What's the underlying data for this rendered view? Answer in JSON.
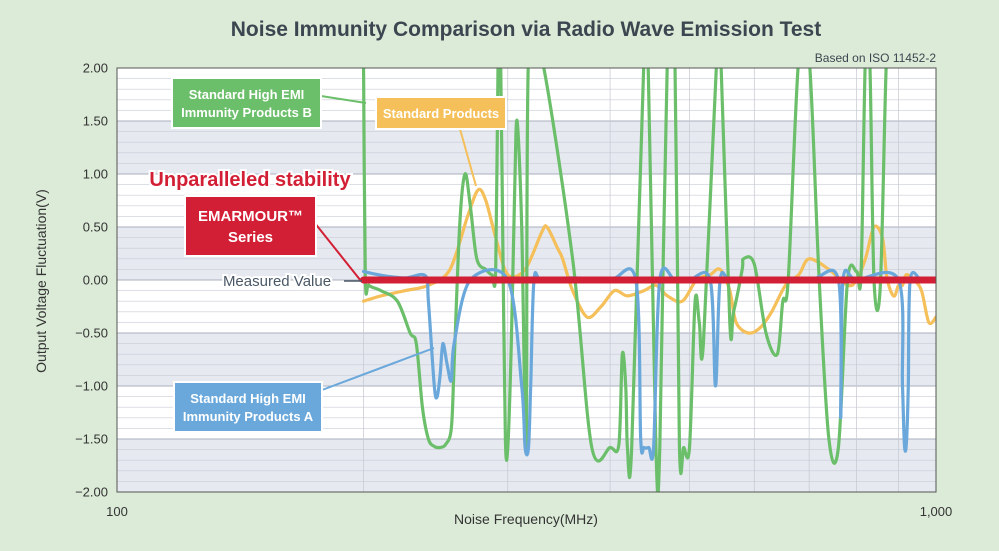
{
  "chart_data": {
    "type": "line",
    "title": "Noise Immunity Comparison via Radio Wave Emission Test",
    "subtitle": "Based on ISO 11452-2",
    "xlabel": "Noise Frequency(MHz)",
    "ylabel": "Output Voltage Fluctuation(V)",
    "x_scale": "log",
    "xlim": [
      100,
      1000
    ],
    "ylim": [
      -2.0,
      2.0
    ],
    "x_tick_labels": [
      "100",
      "1,000"
    ],
    "y_ticks": [
      2.0,
      1.5,
      1.0,
      0.5,
      0.0,
      -0.5,
      -1.0,
      -1.5,
      -2.0
    ],
    "y_tick_labels": [
      "2.00",
      "1.50",
      "1.00",
      "0.50",
      "0.00",
      "−0.50",
      "−1.00",
      "−1.50",
      "−2.00"
    ],
    "grid": true,
    "series": [
      {
        "name": "Standard High EMI Immunity Products B",
        "color": "#6cbf6a",
        "x": [
          200,
          201,
          203,
          210,
          220,
          228,
          232,
          236,
          240,
          244,
          248,
          252,
          256,
          258,
          262,
          266,
          270,
          275,
          282,
          287,
          290,
          292,
          294,
          296,
          298,
          300,
          303,
          306,
          308,
          312,
          316,
          318,
          330,
          360,
          380,
          400,
          410,
          414,
          418,
          420,
          425,
          440,
          445,
          455,
          460,
          470,
          480,
          486,
          492,
          500,
          508,
          514,
          520,
          540,
          546,
          560,
          566,
          580,
          582,
          600,
          620,
          640,
          650,
          660,
          680,
          700,
          720,
          740,
          760,
          780,
          800,
          810,
          820,
          830,
          840,
          855,
          870,
          880,
          900,
          910,
          920,
          930,
          950,
          970,
          1000
        ],
        "y": [
          2.1,
          0.04,
          -0.05,
          -0.1,
          -0.2,
          -0.5,
          -0.6,
          -1.2,
          -1.5,
          -1.57,
          -1.58,
          -1.55,
          -1.4,
          -0.8,
          0.5,
          1.0,
          0.7,
          0.2,
          0.1,
          0.05,
          0.1,
          2.1,
          2.1,
          0.2,
          -1.5,
          -1.58,
          -0.6,
          0.9,
          1.5,
          0.5,
          -1.58,
          2.1,
          2.1,
          0.2,
          -1.58,
          -1.58,
          -1.55,
          -0.7,
          -1.0,
          -1.58,
          -1.58,
          2.1,
          2.1,
          -1.58,
          -1.58,
          2.1,
          2.1,
          -1.56,
          -1.58,
          -1.58,
          -0.2,
          -0.4,
          -0.6,
          2.1,
          2.1,
          -0.4,
          -0.3,
          0.1,
          0.2,
          0.15,
          -0.5,
          -0.7,
          -0.2,
          0.0,
          2.1,
          2.1,
          0.0,
          -1.5,
          -1.58,
          0.0,
          0.08,
          0.05,
          2.1,
          2.1,
          0.0,
          -0.06,
          2.1,
          2.1,
          2.1,
          2.1,
          2.1,
          2.1,
          2.1,
          2.1,
          2.1
        ]
      },
      {
        "name": "Standard Products",
        "color": "#f5bf5a",
        "x": [
          200,
          210,
          225,
          240,
          255,
          268,
          276,
          282,
          290,
          300,
          315,
          330,
          335,
          345,
          350,
          360,
          375,
          390,
          405,
          420,
          440,
          455,
          470,
          490,
          510,
          530,
          545,
          560,
          570,
          590,
          610,
          630,
          655,
          680,
          700,
          740,
          780,
          800,
          820,
          840,
          860,
          870,
          880,
          890,
          900,
          910,
          920,
          940,
          960,
          980,
          1000
        ],
        "y": [
          -0.2,
          -0.15,
          -0.1,
          -0.05,
          0.1,
          0.6,
          0.85,
          0.75,
          0.4,
          0.05,
          0.1,
          0.45,
          0.5,
          0.3,
          0.2,
          -0.1,
          -0.35,
          -0.25,
          -0.1,
          -0.15,
          -0.1,
          -0.05,
          -0.15,
          -0.2,
          0.0,
          0.05,
          0.1,
          -0.1,
          -0.4,
          -0.5,
          -0.45,
          -0.3,
          -0.05,
          0.05,
          0.2,
          0.1,
          -0.05,
          0.0,
          0.2,
          0.5,
          0.4,
          0.05,
          -0.1,
          -0.15,
          -0.05,
          -0.05,
          0.05,
          0.0,
          -0.1,
          -0.4,
          -0.35
        ]
      },
      {
        "name": "Standard High EMI Immunity Products A",
        "color": "#6aa8db",
        "x": [
          200,
          212,
          225,
          238,
          240,
          244,
          246,
          248,
          250,
          253,
          256,
          258,
          270,
          300,
          312,
          315,
          318,
          320,
          323,
          330,
          360,
          400,
          430,
          436,
          440,
          446,
          452,
          460,
          480,
          500,
          530,
          538,
          545,
          560,
          600,
          700,
          760,
          765,
          770,
          800,
          900,
          910,
          915,
          920,
          925,
          930,
          960,
          1000
        ],
        "y": [
          0.08,
          0.04,
          0.02,
          0.04,
          -0.2,
          -1.0,
          -1.1,
          -0.9,
          -0.6,
          -0.8,
          -0.95,
          -0.6,
          0.0,
          0.0,
          -1.0,
          -1.58,
          -1.58,
          -1.0,
          0.0,
          0.0,
          0.02,
          0.0,
          0.0,
          -1.5,
          -1.58,
          -1.58,
          -1.58,
          0.0,
          0.0,
          0.0,
          0.0,
          -1.0,
          0.0,
          0.0,
          0.0,
          0.0,
          0.0,
          -1.3,
          0.0,
          0.0,
          0.0,
          -1.0,
          -1.55,
          -1.55,
          -1.0,
          0.0,
          0.0,
          0.0
        ]
      },
      {
        "name": "EMARMOUR™ Series",
        "color": "#d31f35",
        "x": [
          200,
          1000
        ],
        "y": [
          0.0,
          0.0
        ]
      }
    ],
    "annotations": {
      "highlight": "Unparalleled stability",
      "measured": "Measured Value",
      "label_b": [
        "Standard High EMI",
        "Immunity Products B"
      ],
      "label_std": [
        "Standard Products"
      ],
      "label_a": [
        "Standard High EMI",
        "Immunity Products A"
      ],
      "label_em": [
        "EMARMOUR™",
        "Series"
      ]
    }
  },
  "colors": {
    "background": "#dcebd8",
    "plot_bg": "#ffffff",
    "band": "#e6e9f0",
    "grid": "#c8ccd6",
    "em_red": "#d31f35"
  }
}
